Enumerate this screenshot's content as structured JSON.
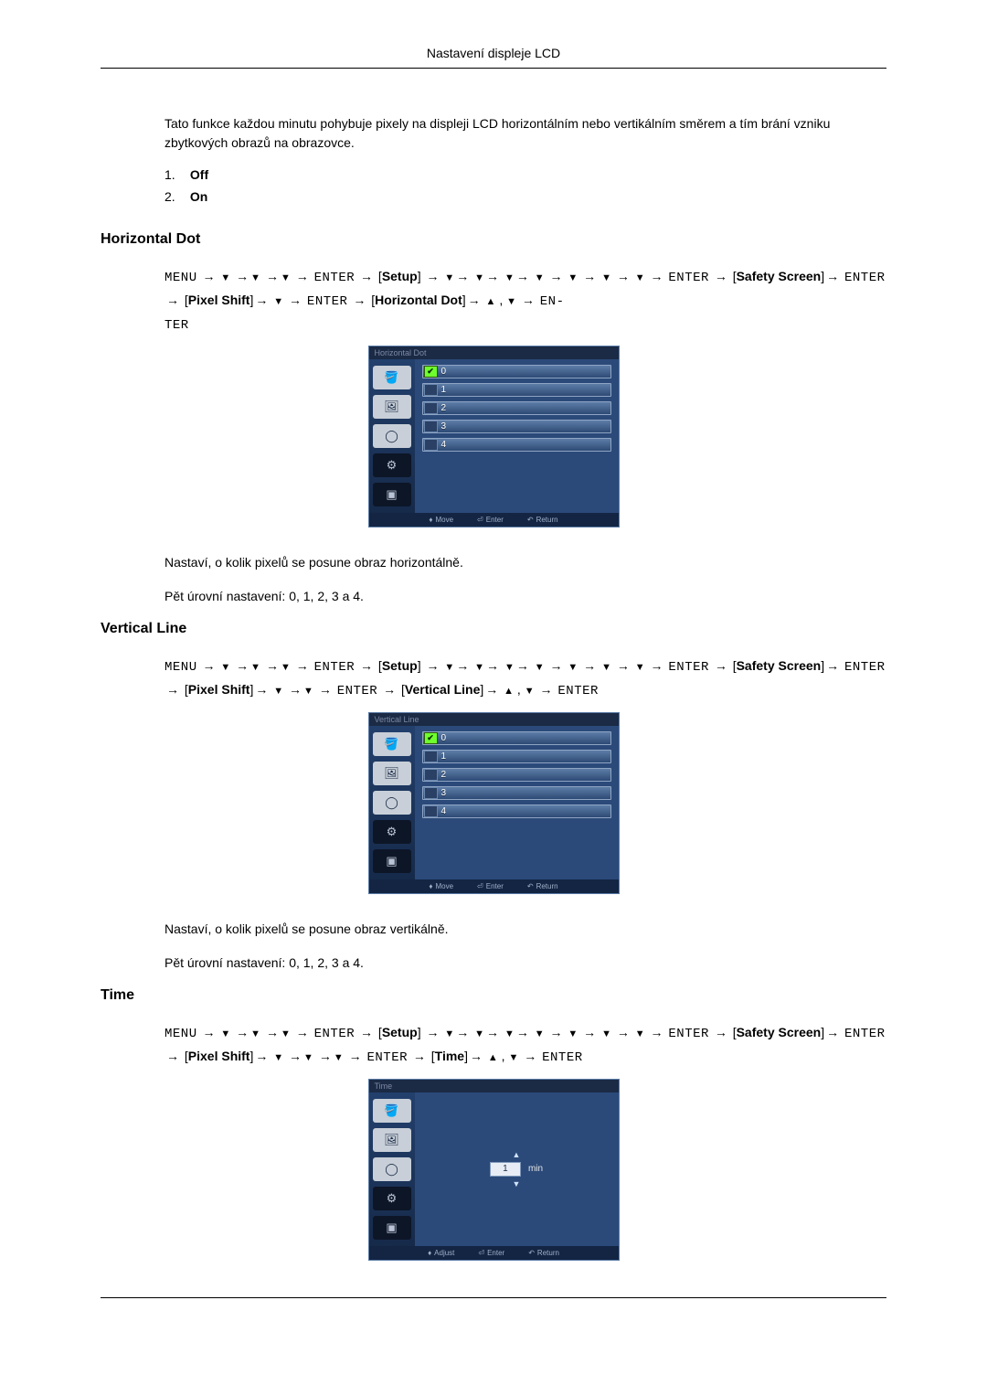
{
  "page_header": "Nastavení displeje LCD",
  "intro_text": "Tato funkce každou minutu pohybuje pixely na displeji LCD horizontálním nebo vertikálním směrem a tím brání vzniku zbytkových obrazů na obrazovce.",
  "off_on": {
    "item1_num": "1.",
    "item1_label": "Off",
    "item2_num": "2.",
    "item2_label": "On"
  },
  "arrow_glyph": "→",
  "down_glyph": "▼",
  "up_glyph": "▲",
  "nav_tokens": {
    "menu": "MENU",
    "enter": "ENTER",
    "setup": "Setup",
    "safety_screen": "Safety Screen",
    "pixel_shift": "Pixel Shift",
    "horizontal_dot": "Horizontal Dot",
    "vertical_line": "Vertical Line",
    "time": "Time"
  },
  "sections": {
    "hdot": {
      "heading": "Horizontal Dot",
      "osd_title": "Horizontal Dot",
      "options": [
        "0",
        "1",
        "2",
        "3",
        "4"
      ],
      "selected_index": 0,
      "footer": {
        "move": "Move",
        "enter": "Enter",
        "return": "Return"
      },
      "desc1": "Nastaví, o kolik pixelů se posune obraz horizontálně.",
      "desc2": "Pět úrovní nastavení: 0, 1, 2, 3 a 4."
    },
    "vline": {
      "heading": "Vertical Line",
      "osd_title": "Vertical Line",
      "options": [
        "0",
        "1",
        "2",
        "3",
        "4"
      ],
      "selected_index": 0,
      "footer": {
        "move": "Move",
        "enter": "Enter",
        "return": "Return"
      },
      "desc1": "Nastaví, o kolik pixelů se posune obraz vertikálně.",
      "desc2": "Pět úrovní nastavení: 0, 1, 2, 3 a 4."
    },
    "time": {
      "heading": "Time",
      "osd_title": "Time",
      "value": "1",
      "unit": "min",
      "footer": {
        "adjust": "Adjust",
        "enter": "Enter",
        "return": "Return"
      }
    }
  },
  "osd_colors": {
    "panel_bg": "#2b4a7a",
    "titlebar_bg": "#1b2a45",
    "titlebar_text": "#7e8aa5",
    "sidebar_bg_from": "#23406d",
    "sidebar_bg_to": "#162a4a",
    "tab_light_bg": "#c8cfd8",
    "tab_dark_bg": "#0d1627",
    "row_border": "#8fa5c4",
    "row_bg_from": "#5d7da7",
    "row_bg_to": "#2d4a75",
    "check_bg": "#6fff2e",
    "footer_bg": "#132543",
    "footer_text": "#9fb0c9"
  },
  "sidebar_icons": [
    "paint-bucket-icon",
    "picture-icon",
    "circle-icon",
    "gear-icon",
    "pip-icon"
  ],
  "sidebar_active_index": 3
}
